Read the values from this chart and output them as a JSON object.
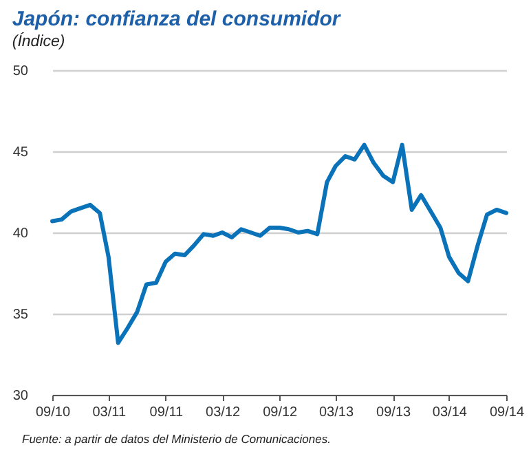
{
  "chart_data": {
    "type": "line",
    "title": "Japón: confianza del consumidor",
    "subtitle": "(Índice)",
    "x": [
      "2010-09",
      "2010-10",
      "2010-11",
      "2010-12",
      "2011-01",
      "2011-02",
      "2011-03",
      "2011-04",
      "2011-05",
      "2011-06",
      "2011-07",
      "2011-08",
      "2011-09",
      "2011-10",
      "2011-11",
      "2011-12",
      "2012-01",
      "2012-02",
      "2012-03",
      "2012-04",
      "2012-05",
      "2012-06",
      "2012-07",
      "2012-08",
      "2012-09",
      "2012-10",
      "2012-11",
      "2012-12",
      "2013-01",
      "2013-02",
      "2013-03",
      "2013-04",
      "2013-05",
      "2013-06",
      "2013-07",
      "2013-08",
      "2013-09",
      "2013-10",
      "2013-11",
      "2013-12",
      "2014-01",
      "2014-02",
      "2014-03",
      "2014-04",
      "2014-05",
      "2014-06",
      "2014-07",
      "2014-08",
      "2014-09"
    ],
    "series": [
      {
        "color": "#0a72b8",
        "values": [
          40.7,
          40.8,
          41.3,
          41.5,
          41.7,
          41.2,
          38.5,
          33.2,
          34.1,
          35.1,
          36.8,
          36.9,
          38.2,
          38.7,
          38.6,
          39.2,
          39.9,
          39.8,
          40.0,
          39.7,
          40.2,
          40.0,
          39.8,
          40.3,
          40.3,
          40.2,
          40.0,
          40.1,
          39.9,
          43.1,
          44.1,
          44.7,
          44.5,
          45.4,
          44.3,
          43.5,
          43.1,
          45.4,
          41.4,
          42.3,
          41.3,
          40.3,
          38.5,
          37.5,
          37.0,
          39.2,
          41.1,
          41.4,
          41.2
        ]
      }
    ],
    "xlim": [
      "2010-09",
      "2014-09"
    ],
    "xticks": [
      {
        "value": "2010-09",
        "label": "09/10"
      },
      {
        "value": "2011-03",
        "label": "03/11"
      },
      {
        "value": "2011-09",
        "label": "09/11"
      },
      {
        "value": "2012-03",
        "label": "03/12"
      },
      {
        "value": "2012-09",
        "label": "09/12"
      },
      {
        "value": "2013-03",
        "label": "03/13"
      },
      {
        "value": "2013-09",
        "label": "09/13"
      },
      {
        "value": "2014-03",
        "label": "03/14"
      },
      {
        "value": "2014-09",
        "label": "09/14"
      }
    ],
    "ylim": [
      30,
      50
    ],
    "yticks": [
      30,
      35,
      40,
      45,
      50
    ],
    "grid": "y",
    "marker": "none",
    "line_style": "solid",
    "annotations": [
      "Fuente: a partir de datos del Ministerio de Comunicaciones."
    ]
  }
}
